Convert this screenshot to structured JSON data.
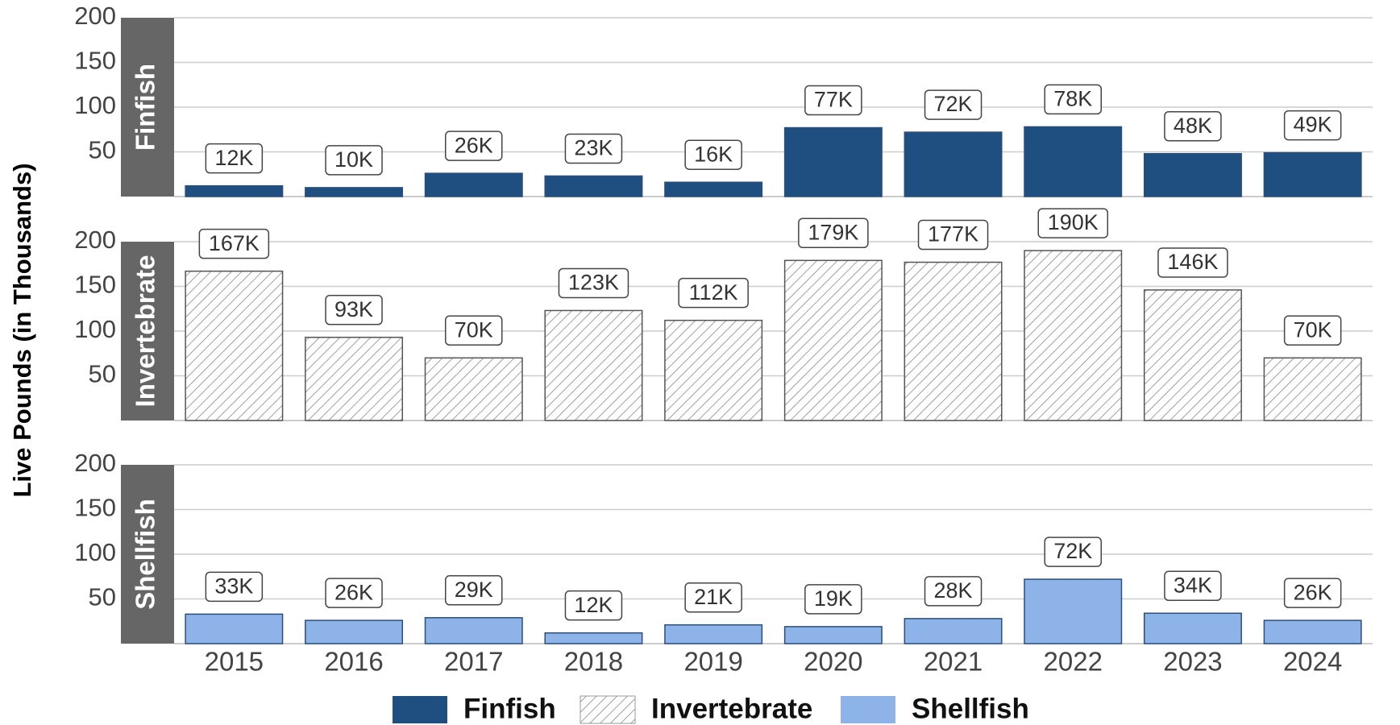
{
  "chart_data": {
    "type": "bar",
    "facet": true,
    "ylabel": "Live Pounds (in Thousands)",
    "categories": [
      "2015",
      "2016",
      "2017",
      "2018",
      "2019",
      "2020",
      "2021",
      "2022",
      "2023",
      "2024"
    ],
    "ylim": [
      0,
      200
    ],
    "yticks": [
      50,
      100,
      150,
      200
    ],
    "grid": true,
    "legend": "bottom",
    "series": [
      {
        "name": "Finfish",
        "color": "#1f4e80",
        "values": [
          12,
          10,
          26,
          23,
          16,
          77,
          72,
          78,
          48,
          49
        ],
        "value_labels": [
          "12K",
          "10K",
          "26K",
          "23K",
          "16K",
          "77K",
          "72K",
          "78K",
          "48K",
          "49K"
        ]
      },
      {
        "name": "Invertebrate",
        "color": "#ffffff",
        "pattern": "hatch",
        "values": [
          167,
          93,
          70,
          123,
          112,
          179,
          177,
          190,
          146,
          70
        ],
        "value_labels": [
          "167K",
          "93K",
          "70K",
          "123K",
          "112K",
          "179K",
          "177K",
          "190K",
          "146K",
          "70K"
        ]
      },
      {
        "name": "Shellfish",
        "color": "#8db3e8",
        "values": [
          33,
          26,
          29,
          12,
          21,
          19,
          28,
          72,
          34,
          26
        ],
        "value_labels": [
          "33K",
          "26K",
          "29K",
          "12K",
          "21K",
          "19K",
          "28K",
          "72K",
          "34K",
          "26K"
        ]
      }
    ]
  }
}
